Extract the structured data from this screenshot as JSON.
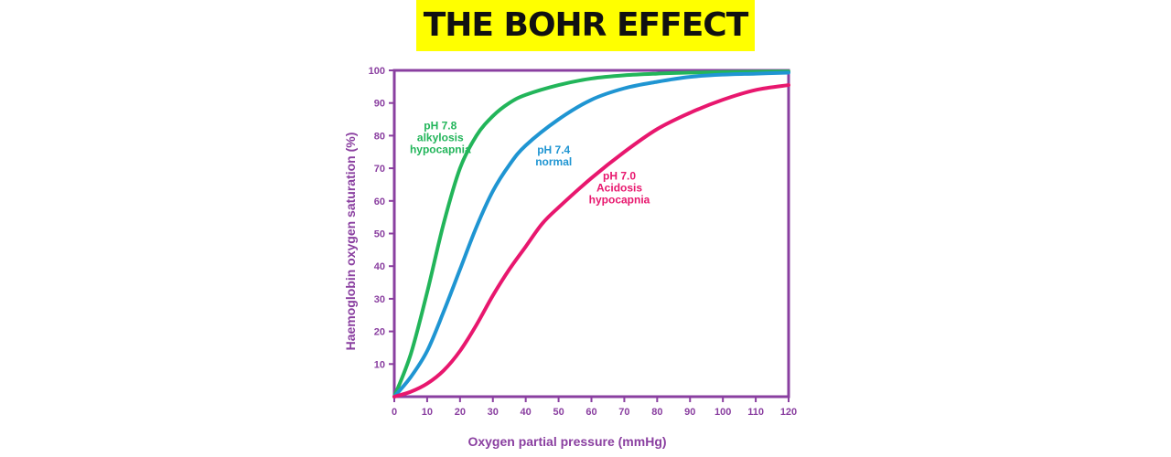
{
  "page_title": "THE BOHR EFFECT",
  "chart_data": {
    "type": "line",
    "xlabel": "Oxygen partial pressure (mmHg)",
    "ylabel": "Haemoglobin oxygen saturation (%)",
    "xlim": [
      0,
      120
    ],
    "ylim": [
      0,
      100
    ],
    "xticks": [
      0,
      10,
      20,
      30,
      40,
      50,
      60,
      70,
      80,
      90,
      100,
      110,
      120
    ],
    "yticks": [
      10,
      20,
      30,
      40,
      50,
      60,
      70,
      80,
      90,
      100
    ],
    "grid": false,
    "axis_color": "#8a3fa0",
    "series": [
      {
        "label_lines": [
          "pH 7.8",
          "alkylosis",
          "hypocapnia"
        ],
        "label_pos": [
          14,
          82
        ],
        "color": "#22b55a",
        "x": [
          0,
          5,
          10,
          15,
          20,
          25,
          30,
          35,
          40,
          50,
          60,
          70,
          80,
          90,
          100,
          110,
          120
        ],
        "y": [
          0,
          13,
          32,
          53,
          70,
          80,
          86,
          90,
          92.5,
          95.5,
          97.5,
          98.5,
          99,
          99.3,
          99.5,
          99.6,
          99.7
        ]
      },
      {
        "label_lines": [
          "pH 7.4",
          "normal"
        ],
        "label_pos": [
          48.5,
          74.5
        ],
        "color": "#1f95d2",
        "x": [
          0,
          5,
          10,
          15,
          20,
          25,
          30,
          35,
          40,
          50,
          60,
          70,
          80,
          90,
          100,
          110,
          120
        ],
        "y": [
          0,
          6,
          14,
          26,
          39,
          52,
          63,
          71,
          77,
          85,
          91,
          94.5,
          96.5,
          98,
          98.7,
          99,
          99.3
        ]
      },
      {
        "label_lines": [
          "pH 7.0",
          "Acidosis",
          "hypocapnia"
        ],
        "label_pos": [
          68.5,
          66.5
        ],
        "color": "#e8176e",
        "x": [
          0,
          5,
          10,
          15,
          20,
          25,
          30,
          35,
          40,
          45,
          50,
          60,
          70,
          80,
          90,
          100,
          110,
          120
        ],
        "y": [
          0,
          1.5,
          4,
          8,
          14,
          22,
          31,
          39,
          46,
          53,
          58,
          67,
          75,
          82,
          87,
          91,
          94,
          95.5
        ]
      }
    ]
  }
}
